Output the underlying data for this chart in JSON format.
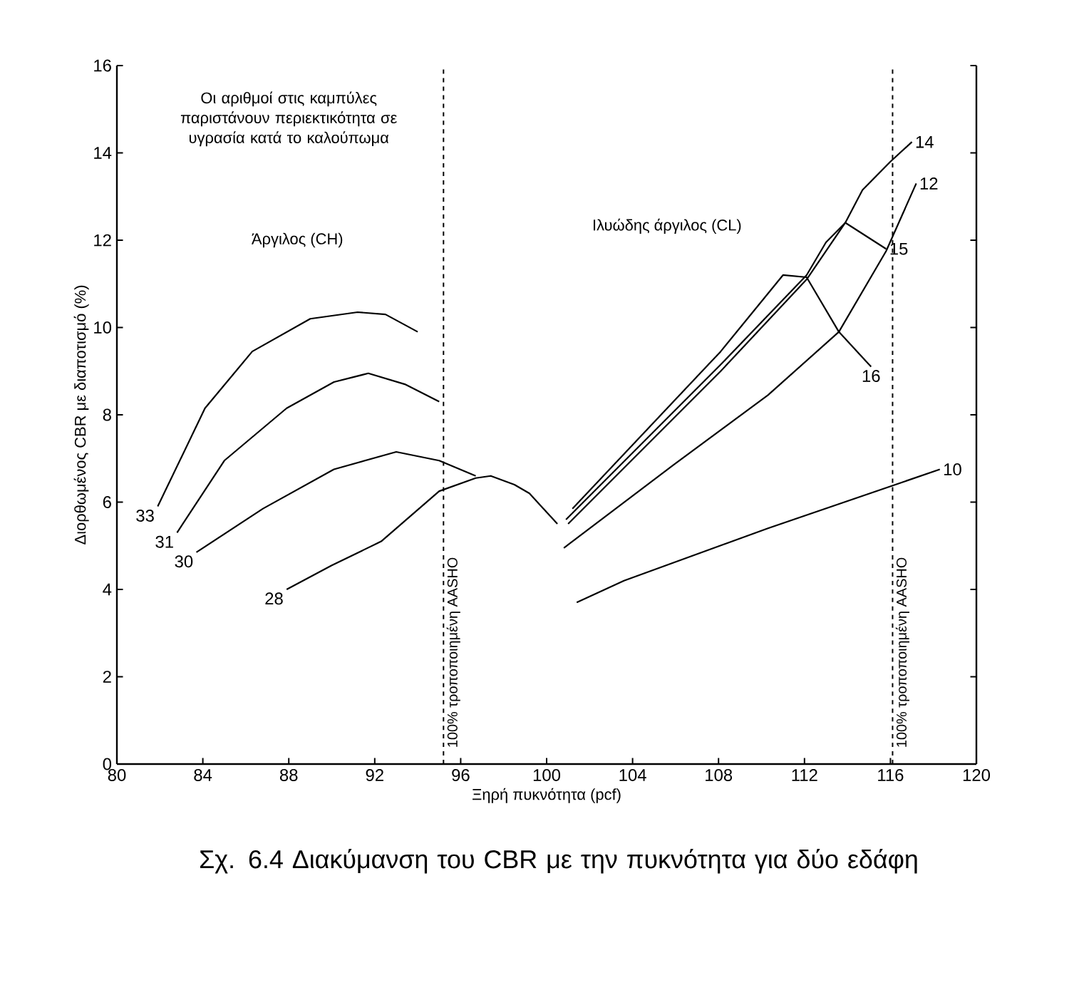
{
  "chart_data": {
    "type": "line",
    "xlabel": "Ξηρή πυκνότητα (pcf)",
    "ylabel": "Διορθωμένος CBR με διαποτισμό (%)",
    "xlim": [
      80,
      120
    ],
    "ylim": [
      0,
      16
    ],
    "xticks": [
      80,
      84,
      88,
      92,
      96,
      100,
      104,
      108,
      112,
      116,
      120
    ],
    "yticks": [
      0,
      2,
      4,
      6,
      8,
      10,
      12,
      14,
      16
    ],
    "grid": false,
    "marker": "none",
    "line_style": "solid",
    "series": [
      {
        "name": "33",
        "color": "#000000",
        "x": [
          81.9,
          84.1,
          86.3,
          89.0,
          91.2,
          92.5,
          94.0
        ],
        "values": [
          5.9,
          8.15,
          9.45,
          10.2,
          10.35,
          10.3,
          9.9
        ]
      },
      {
        "name": "31",
        "color": "#000000",
        "x": [
          82.8,
          85.0,
          87.9,
          90.1,
          91.7,
          93.4,
          95.0
        ],
        "values": [
          5.3,
          6.95,
          8.15,
          8.75,
          8.95,
          8.7,
          8.3
        ]
      },
      {
        "name": "30",
        "color": "#000000",
        "x": [
          83.7,
          86.8,
          90.1,
          93.0,
          95.0,
          96.7
        ],
        "values": [
          4.85,
          5.85,
          6.75,
          7.15,
          6.95,
          6.6
        ]
      },
      {
        "name": "28",
        "color": "#000000",
        "x": [
          87.9,
          90.0,
          92.3,
          95.0,
          96.7,
          97.4,
          98.5,
          99.2,
          100.5
        ],
        "values": [
          4.0,
          4.55,
          5.1,
          6.25,
          6.55,
          6.6,
          6.4,
          6.2,
          5.5
        ]
      },
      {
        "name": "14",
        "color": "#000000",
        "x": [
          101.0,
          108.1,
          112.1,
          113.9,
          114.7,
          116.0,
          117.0
        ],
        "values": [
          5.5,
          9.0,
          11.1,
          12.4,
          13.15,
          13.8,
          14.25
        ]
      },
      {
        "name": "12",
        "color": "#000000",
        "x": [
          100.8,
          105.9,
          110.3,
          113.6,
          115.8,
          117.2
        ],
        "values": [
          4.95,
          6.85,
          8.45,
          9.9,
          11.75,
          13.3
        ]
      },
      {
        "name": "15",
        "color": "#000000",
        "x": [
          100.9,
          108.1,
          112.1,
          113.0,
          113.9,
          115.8
        ],
        "values": [
          5.6,
          9.15,
          11.2,
          11.95,
          12.4,
          11.8
        ]
      },
      {
        "name": "16",
        "color": "#000000",
        "x": [
          101.2,
          108.1,
          111.0,
          112.1,
          113.6,
          115.1
        ],
        "values": [
          5.85,
          9.45,
          11.2,
          11.15,
          9.9,
          9.1
        ]
      },
      {
        "name": "10",
        "color": "#000000",
        "x": [
          101.4,
          103.6,
          110.3,
          118.3
        ],
        "values": [
          3.7,
          4.2,
          5.4,
          6.75
        ]
      }
    ],
    "ref_lines": [
      {
        "axis": "x",
        "value": 95.2,
        "label": "100% τροποποιημένη AASHO",
        "line_style": "dashed",
        "color": "#000000"
      },
      {
        "axis": "x",
        "value": 116.1,
        "label": "100% τροποποιημένη AASHO",
        "line_style": "dashed",
        "color": "#000000"
      }
    ],
    "annotations": [
      "Οι αριθμοί στις καμπύλες παριστάνουν περιεκτικότητα σε υγρασία κατά το καλούπωμα",
      "Άργιλος (CH)",
      "Ιλυώδης άργιλος (CL)",
      "Σχ. 6.4 Διακύμανση του CBR με την πυκνότητα για δύο εδάφη"
    ]
  }
}
